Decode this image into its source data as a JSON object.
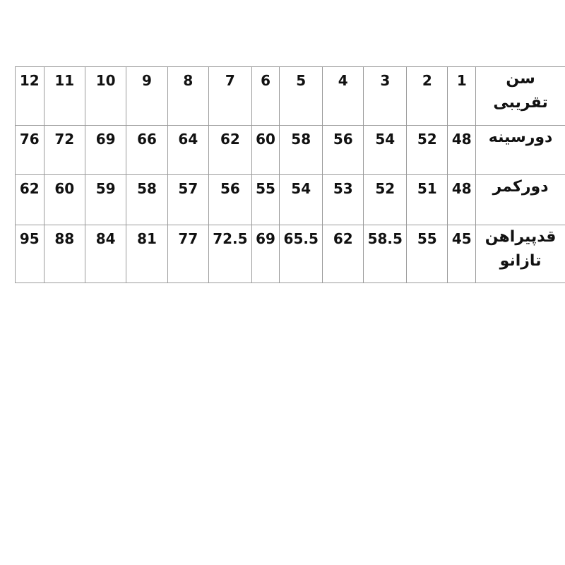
{
  "rows": [
    {
      "label": [
        "سن",
        "تقریبی"
      ],
      "values": [
        "1",
        "2",
        "3",
        "4",
        "5",
        "6",
        "7",
        "8",
        "9",
        "10",
        "11",
        "12"
      ]
    },
    {
      "label": [
        "دورسینه"
      ],
      "values": [
        "48",
        "52",
        "54",
        "56",
        "58",
        "60",
        "62",
        "64",
        "66",
        "69",
        "72",
        "76"
      ]
    },
    {
      "label": [
        "دورکمر"
      ],
      "values": [
        "48",
        "51",
        "52",
        "53",
        "54",
        "55",
        "56",
        "57",
        "58",
        "59",
        "60",
        "62"
      ]
    },
    {
      "label": [
        "قدپیراهن",
        "تازانو"
      ],
      "values": [
        "45",
        "55",
        "58.5",
        "62",
        "65.5",
        "69",
        "72.5",
        "77",
        "81",
        "84",
        "88",
        "95"
      ]
    }
  ]
}
